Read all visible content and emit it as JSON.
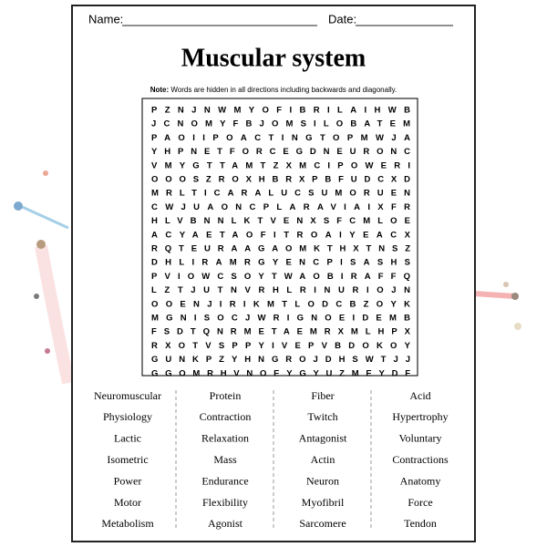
{
  "header": {
    "name_label": "Name:",
    "date_label": "Date:"
  },
  "title": "Muscular system",
  "note": {
    "label": "Note:",
    "text": "Words are hidden in all directions including backwards and diagonally."
  },
  "grid": {
    "rows": [
      "PZNJNWMYOFIBRILAIHWB",
      "JCNOMYFBJOMSILOBATEM",
      "PAOIIPOACTINGTOPMWJA",
      "YHPNETFORCEGDNEURONC",
      "VMYGTTAMTZXMCIPOWERI",
      "OOOSZROXHBRXPBFUDCXD",
      "MRLTICARALUCSUMORUEN",
      "CWJUAONCPLARAVIAIXFR",
      "HLVBNNLKTVENXSFCMLOE",
      "ACYAETAOFITROAIYEACX",
      "RQTEURAAGAOMKTHXTNSZ",
      "DHLIRAMRGYENCPISASHS",
      "PVIOWCSOYTWAOBIRAFFQ",
      "LZTJUTNVRHLRINURIOJN",
      "OOENJIRIKMTLODCBZOYK",
      "MGNISOCJWRIGNOEIDEMB",
      "FSDTQNRMETAEMRXMLHPX",
      "RXOTVSPPYIVEPVBDOKOY",
      "GUNKPZYHNGROJDHSWTJJ",
      "GGOMRHVNOEYGYUZMEYDF"
    ]
  },
  "words": [
    [
      "Neuromuscular",
      "Physiology",
      "Lactic",
      "Isometric",
      "Power",
      "Motor",
      "Metabolism"
    ],
    [
      "Protein",
      "Contraction",
      "Relaxation",
      "Mass",
      "Endurance",
      "Flexibility",
      "Agonist"
    ],
    [
      "Fiber",
      "Twitch",
      "Antagonist",
      "Actin",
      "Neuron",
      "Myofibril",
      "Sarcomere"
    ],
    [
      "Acid",
      "Hypertrophy",
      "Voluntary",
      "Contractions",
      "Anatomy",
      "Force",
      "Tendon"
    ]
  ]
}
